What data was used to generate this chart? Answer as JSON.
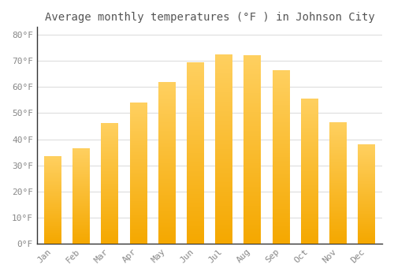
{
  "title": "Average monthly temperatures (°F ) in Johnson City",
  "months": [
    "Jan",
    "Feb",
    "Mar",
    "Apr",
    "May",
    "Jun",
    "Jul",
    "Aug",
    "Sep",
    "Oct",
    "Nov",
    "Dec"
  ],
  "values": [
    33.5,
    36.5,
    46.0,
    54.0,
    62.0,
    69.5,
    72.5,
    72.0,
    66.5,
    55.5,
    46.5,
    38.0
  ],
  "bar_color_bottom": "#F5A800",
  "bar_color_top": "#FFD060",
  "background_color": "#FFFFFF",
  "grid_color": "#DDDDDD",
  "ytick_labels": [
    "0°F",
    "10°F",
    "20°F",
    "30°F",
    "40°F",
    "50°F",
    "60°F",
    "70°F",
    "80°F"
  ],
  "ytick_values": [
    0,
    10,
    20,
    30,
    40,
    50,
    60,
    70,
    80
  ],
  "ylim": [
    0,
    83
  ],
  "title_fontsize": 10,
  "tick_fontsize": 8,
  "title_color": "#555555",
  "tick_color": "#888888",
  "spine_color": "#333333"
}
